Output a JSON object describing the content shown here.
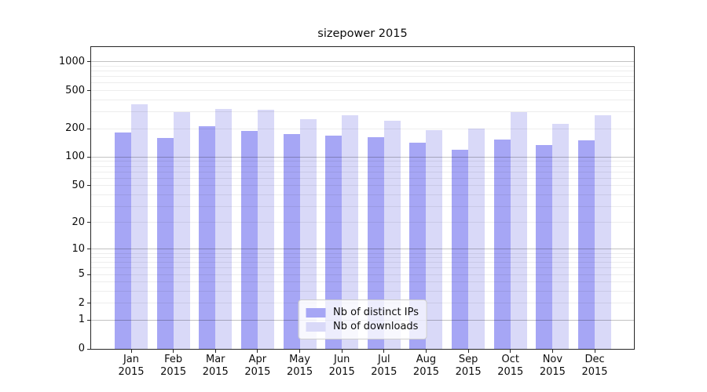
{
  "chart_data": {
    "type": "bar",
    "title": "sizepower 2015",
    "categories": [
      "Jan 2015",
      "Feb 2015",
      "Mar 2015",
      "Apr 2015",
      "May 2015",
      "Jun 2015",
      "Jul 2015",
      "Aug 2015",
      "Sep 2015",
      "Oct 2015",
      "Nov 2015",
      "Dec 2015"
    ],
    "series": [
      {
        "name": "Nb of distinct IPs",
        "color": "#a6a6f5",
        "values": [
          182,
          159,
          211,
          189,
          175,
          170,
          163,
          143,
          120,
          153,
          134,
          151
        ]
      },
      {
        "name": "Nb of downloads",
        "color": "#d9d9f8",
        "values": [
          358,
          298,
          320,
          315,
          251,
          276,
          243,
          192,
          200,
          298,
          224,
          275
        ]
      }
    ],
    "xlabel": "",
    "ylabel": "",
    "yscale": "log1p",
    "yticks": [
      0,
      1,
      2,
      5,
      10,
      20,
      50,
      100,
      200,
      500,
      1000
    ],
    "ylim": [
      0,
      1460
    ],
    "grid": true,
    "grid_major_color": "#b0b0b0",
    "grid_minor_color": "#e8e8e8",
    "legend_position": "lower center"
  }
}
